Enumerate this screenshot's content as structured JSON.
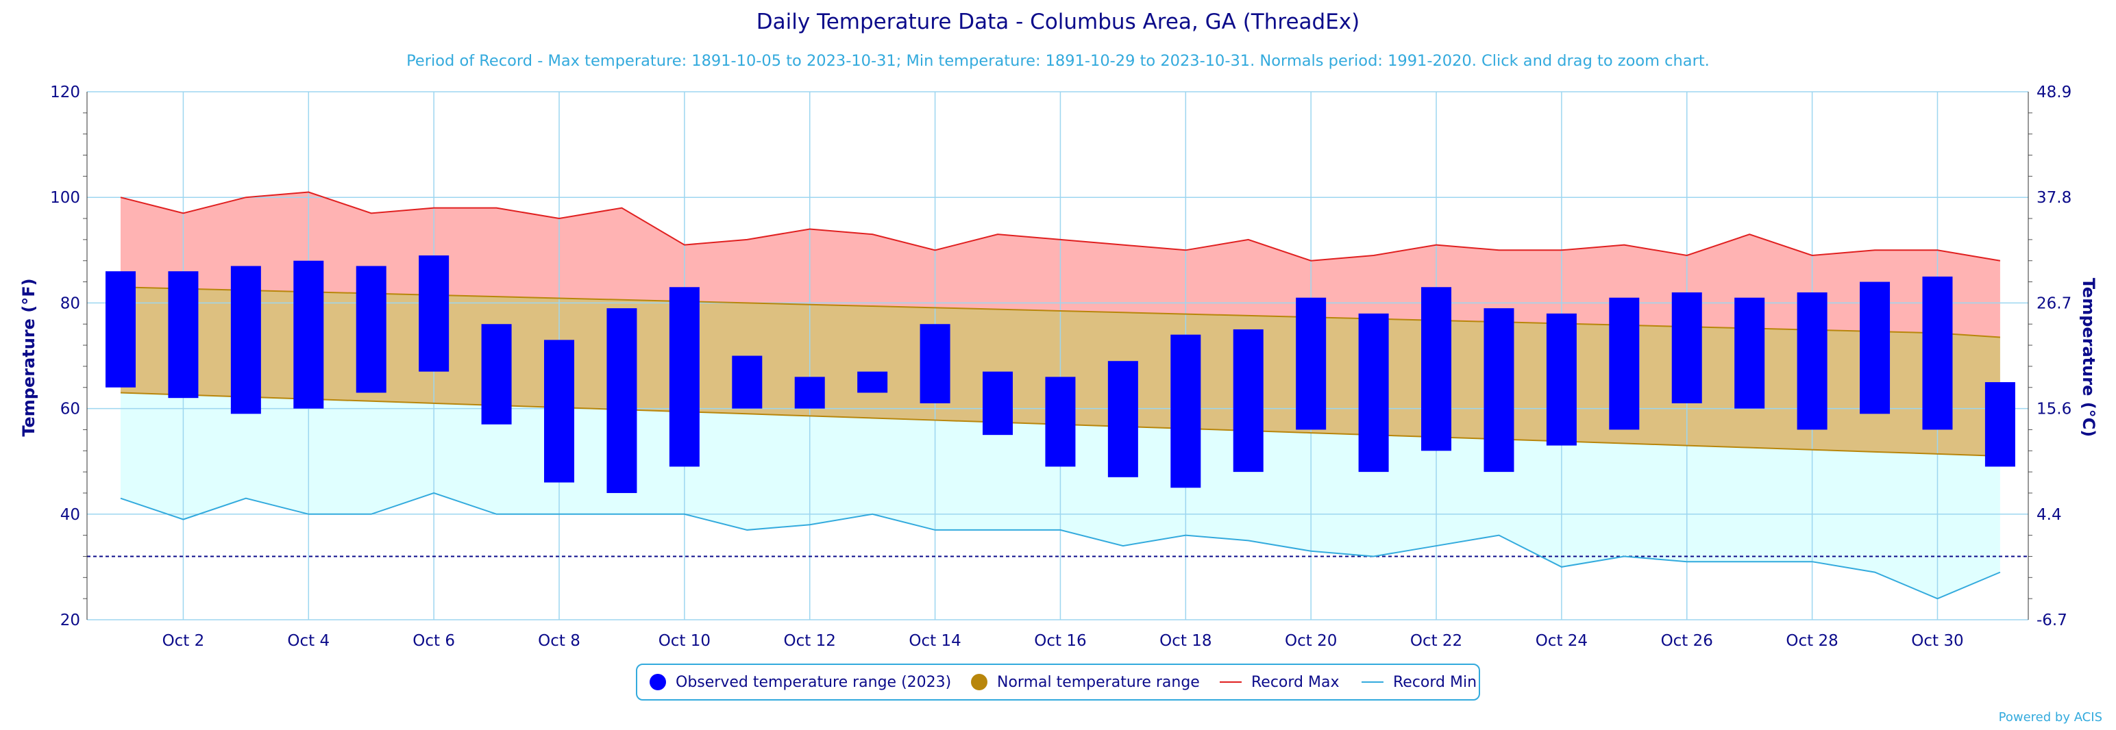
{
  "chart_data": {
    "type": "bar",
    "title": "Daily Temperature Data - Columbus Area, GA (ThreadEx)",
    "subtitle": "Period of Record - Max temperature: 1891-10-05 to 2023-10-31; Min temperature: 1891-10-29 to 2023-10-31. Normals period: 1991-2020. Click and drag to zoom chart.",
    "ylabel": "Temperature (°F)",
    "ylabel_right": "Temperature (°C)",
    "ylim": [
      20,
      120
    ],
    "yticks_left": [
      "20",
      "40",
      "60",
      "80",
      "100",
      "120"
    ],
    "yticks_right": [
      "-6.7",
      "4.4",
      "15.6",
      "26.7",
      "37.8",
      "48.9"
    ],
    "xticks": [
      "Oct 2",
      "Oct 4",
      "Oct 6",
      "Oct 8",
      "Oct 10",
      "Oct 12",
      "Oct 14",
      "Oct 16",
      "Oct 18",
      "Oct 20",
      "Oct 22",
      "Oct 24",
      "Oct 26",
      "Oct 28",
      "Oct 30"
    ],
    "days": [
      1,
      2,
      3,
      4,
      5,
      6,
      7,
      8,
      9,
      10,
      11,
      12,
      13,
      14,
      15,
      16,
      17,
      18,
      19,
      20,
      21,
      22,
      23,
      24,
      25,
      26,
      27,
      28,
      29,
      30,
      31
    ],
    "freezing_line": 32,
    "grid": true,
    "legend_position": "bottom-center",
    "series": [
      {
        "name": "Observed temperature range (2023)",
        "color": "#0000ff",
        "kind": "range-bar",
        "high": [
          86,
          86,
          87,
          88,
          87,
          89,
          76,
          73,
          79,
          83,
          70,
          66,
          67,
          76,
          67,
          66,
          69,
          74,
          75,
          81,
          78,
          83,
          79,
          78,
          81,
          82,
          81,
          82,
          84,
          85,
          65
        ],
        "low": [
          64,
          62,
          59,
          60,
          63,
          67,
          57,
          46,
          44,
          49,
          60,
          60,
          63,
          61,
          55,
          49,
          47,
          45,
          48,
          56,
          48,
          52,
          48,
          53,
          56,
          61,
          60,
          56,
          59,
          56,
          49
        ]
      },
      {
        "name": "Normal temperature range",
        "color": "#b8860b",
        "kind": "range-area",
        "high": [
          83,
          82.7,
          82.4,
          82.1,
          81.8,
          81.5,
          81.2,
          80.9,
          80.6,
          80.3,
          80,
          79.7,
          79.4,
          79.1,
          78.8,
          78.5,
          78.2,
          77.9,
          77.6,
          77.3,
          77,
          76.7,
          76.4,
          76.1,
          75.8,
          75.5,
          75.2,
          74.9,
          74.6,
          74.3,
          73.5
        ],
        "low": [
          63,
          62.6,
          62.2,
          61.8,
          61.4,
          61,
          60.6,
          60.2,
          59.8,
          59.4,
          59,
          58.6,
          58.2,
          57.8,
          57.4,
          57,
          56.6,
          56.2,
          55.8,
          55.4,
          55,
          54.6,
          54.2,
          53.8,
          53.4,
          53,
          52.6,
          52.2,
          51.8,
          51.4,
          51
        ]
      },
      {
        "name": "Record Max",
        "color": "#e02020",
        "kind": "line",
        "values": [
          100,
          97,
          100,
          101,
          97,
          98,
          98,
          96,
          98,
          91,
          92,
          94,
          93,
          90,
          93,
          92,
          91,
          90,
          92,
          88,
          89,
          91,
          90,
          90,
          91,
          89,
          93,
          89,
          90,
          90,
          88
        ]
      },
      {
        "name": "Record Min",
        "color": "#33aadd",
        "kind": "line",
        "values": [
          43,
          39,
          43,
          40,
          40,
          44,
          40,
          40,
          40,
          40,
          37,
          38,
          40,
          37,
          37,
          37,
          34,
          36,
          35,
          33,
          32,
          34,
          36,
          30,
          32,
          31,
          31,
          31,
          29,
          24,
          29
        ]
      }
    ]
  },
  "colors": {
    "title": "#0b0b8a",
    "subtitle": "#33aadd",
    "record_max_fill": "#ffb3b3",
    "normal_fill": "#ddc080",
    "record_min_fill": "#e0ffff",
    "grid": "#9dd6f0"
  },
  "credits": "Powered by ACIS"
}
